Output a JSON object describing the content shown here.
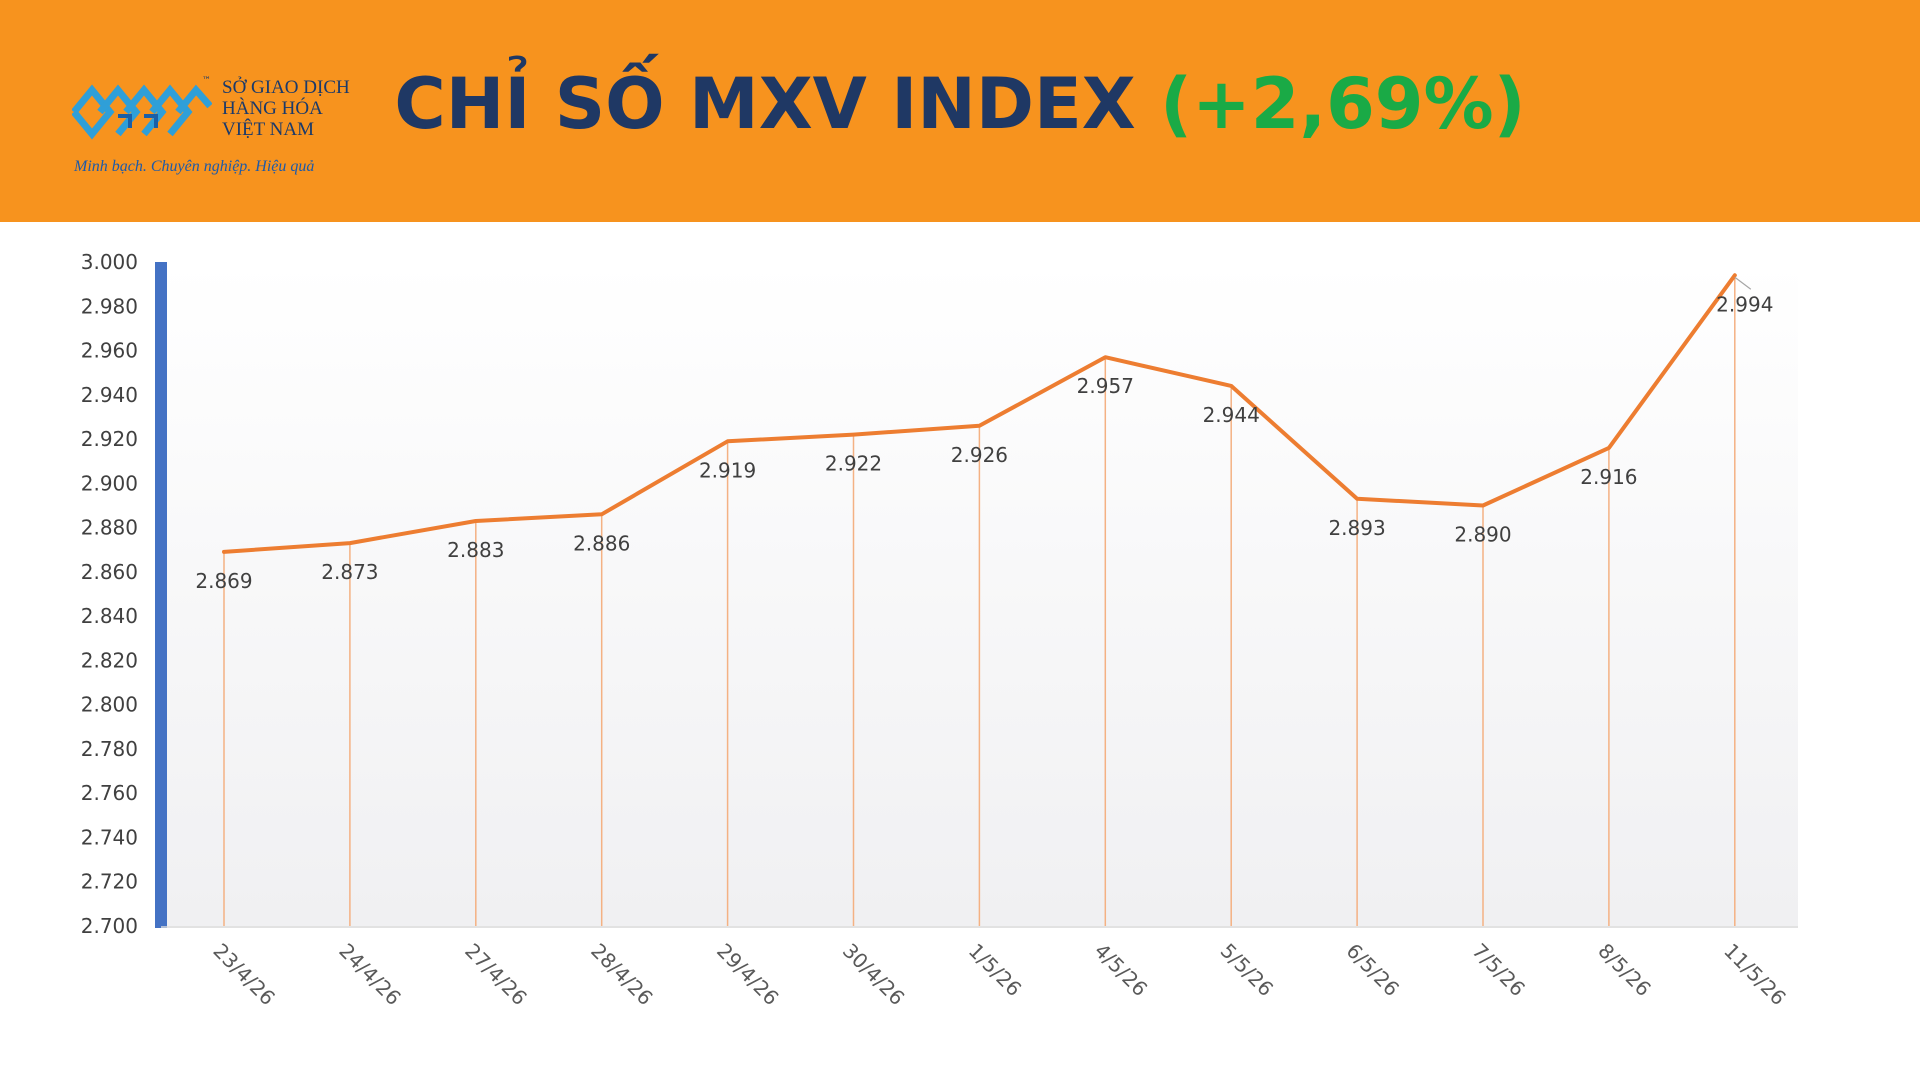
{
  "header": {
    "logo": {
      "tm": "™",
      "line1": "SỞ GIAO DỊCH",
      "line2": "HÀNG HÓA",
      "line3": "VIỆT NAM",
      "tagline": "Minh bạch. Chuyên nghiệp. Hiệu quả"
    },
    "title_main": "CHỈ SỐ MXV INDEX",
    "title_change": "(+2,69%)"
  },
  "colors": {
    "header_bg": "#f7931e",
    "title": "#1f3864",
    "change": "#1aaa46",
    "line": "#ed7d31",
    "axis": "#4472c4"
  },
  "chart_data": {
    "type": "line",
    "categories": [
      "23/4/26",
      "24/4/26",
      "27/4/26",
      "28/4/26",
      "29/4/26",
      "30/4/26",
      "1/5/26",
      "4/5/26",
      "5/5/26",
      "6/5/26",
      "7/5/26",
      "8/5/26",
      "11/5/26"
    ],
    "values": [
      2869,
      2873,
      2883,
      2886,
      2919,
      2922,
      2926,
      2957,
      2944,
      2893,
      2890,
      2916,
      2994
    ],
    "data_labels": [
      "2.869",
      "2.873",
      "2.883",
      "2.886",
      "2.919",
      "2.922",
      "2.926",
      "2.957",
      "2.944",
      "2.893",
      "2.890",
      "2.916",
      "2.994"
    ],
    "ylim": [
      2700,
      3000
    ],
    "y_ticks": [
      2700,
      2720,
      2740,
      2760,
      2780,
      2800,
      2820,
      2840,
      2860,
      2880,
      2900,
      2920,
      2940,
      2960,
      2980,
      3000
    ],
    "y_tick_labels": [
      "2.700",
      "2.720",
      "2.740",
      "2.760",
      "2.780",
      "2.800",
      "2.820",
      "2.840",
      "2.860",
      "2.880",
      "2.900",
      "2.920",
      "2.940",
      "2.960",
      "2.980",
      "3.000"
    ],
    "grid": false,
    "drop_lines": true
  }
}
